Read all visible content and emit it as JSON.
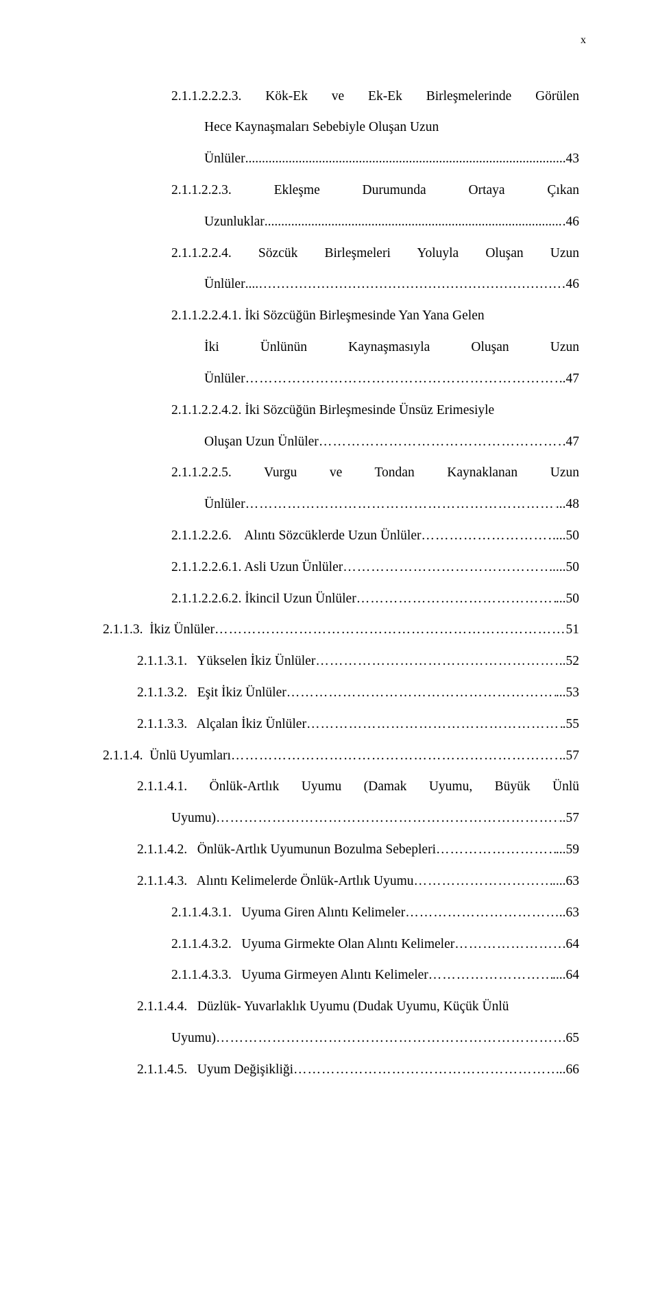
{
  "page_marker": "x",
  "entries": [
    {
      "cls": "lvl-a just",
      "text": "2.1.1.2.2.2.3.  Kök-Ek  ve  Ek-Ek  Birleşmelerinde  Görülen"
    },
    {
      "cls": "cont",
      "label": "Hece Kaynaşmaları Sebebiyle Oluşan Uzun",
      "page": ""
    },
    {
      "cls": "cont",
      "label": "Ünlüler",
      "leader": "dots",
      "page": "43"
    },
    {
      "cls": "lvl-a just",
      "text": "2.1.1.2.2.3.    Ekleşme    Durumunda    Ortaya    Çıkan"
    },
    {
      "cls": "cont",
      "label": "Uzunluklar",
      "leader": "dots",
      "page": ".46"
    },
    {
      "cls": "lvl-a just",
      "text": "2.1.1.2.2.4.   Sözcük   Birleşmeleri   Yoluyla   Oluşan   Uzun"
    },
    {
      "cls": "cont",
      "label": "Ünlüler",
      "leader": "mixed",
      "page": "46"
    },
    {
      "cls": "lvl-b",
      "label": "2.1.1.2.2.4.1. İki Sözcüğün Birleşmesinde Yan Yana Gelen",
      "page": ""
    },
    {
      "cls": "cont just",
      "text": "İki   Ünlünün   Kaynaşmasıyla   Oluşan   Uzun"
    },
    {
      "cls": "cont",
      "label": "Ünlüler",
      "leader": "ell",
      "page": "..47"
    },
    {
      "cls": "lvl-b",
      "label": "2.1.1.2.2.4.2. İki Sözcüğün Birleşmesinde Ünsüz Erimesiyle",
      "page": ""
    },
    {
      "cls": "cont",
      "label": "Oluşan Uzun Ünlüler",
      "leader": "ell",
      "page": "47"
    },
    {
      "cls": "lvl-a just",
      "text": "2.1.1.2.2.5.    Vurgu    ve    Tondan    Kaynaklanan    Uzun"
    },
    {
      "cls": "cont",
      "label": "Ünlüler",
      "leader": "ell",
      "page": "...48"
    },
    {
      "cls": "lvl-a",
      "label": "2.1.1.2.2.6.    Alıntı Sözcüklerde Uzun Ünlüler",
      "leader": "ell",
      "page": "....50"
    },
    {
      "cls": "lvl-b",
      "label": "2.1.1.2.2.6.1. Asli Uzun Ünlüler",
      "leader": "ell",
      "page": ".....50"
    },
    {
      "cls": "lvl-b",
      "label": "2.1.1.2.2.6.2. İkincil Uzun Ünlüler",
      "leader": "ell",
      "page": "...50"
    },
    {
      "cls": "lvl-d",
      "label": "2.1.1.3.  İkiz Ünlüler",
      "leader": "ell",
      "page": "51"
    },
    {
      "cls": "lvl-c",
      "label": "2.1.1.3.1.   Yükselen İkiz Ünlüler",
      "leader": "ell",
      "page": "..52"
    },
    {
      "cls": "lvl-c",
      "label": "2.1.1.3.2.   Eşit İkiz Ünlüler",
      "leader": "ell",
      "page": "...53"
    },
    {
      "cls": "lvl-c",
      "label": "2.1.1.3.3.   Alçalan İkiz Ünlüler",
      "leader": "ell",
      "page": ".55"
    },
    {
      "cls": "lvl-d",
      "label": "2.1.1.4.  Ünlü Uyumları",
      "leader": "ell",
      "page": "..57"
    },
    {
      "cls": "lvl-c just",
      "text": "2.1.1.4.1.   Önlük-Artlık  Uyumu  (Damak  Uyumu,  Büyük  Ünlü"
    },
    {
      "cls": "cont2",
      "label": "Uyumu)",
      "leader": "ell",
      "page": "..57"
    },
    {
      "cls": "lvl-c",
      "label": "2.1.1.4.2.   Önlük-Artlık Uyumunun Bozulma Sebepleri",
      "leader": "ell",
      "page": "...59"
    },
    {
      "cls": "lvl-c",
      "label": "2.1.1.4.3.   Alıntı Kelimelerde Önlük-Artlık Uyumu",
      "leader": "ell",
      "page": "....63"
    },
    {
      "cls": "lvl-a",
      "label": "2.1.1.4.3.1.   Uyuma Giren Alıntı Kelimeler",
      "leader": "ell",
      "page": "..63"
    },
    {
      "cls": "lvl-a",
      "label": "2.1.1.4.3.2.   Uyuma Girmekte Olan Alıntı Kelimeler",
      "leader": "ell",
      "page": "64"
    },
    {
      "cls": "lvl-a",
      "label": "2.1.1.4.3.3.   Uyuma Girmeyen Alıntı Kelimeler",
      "leader": "ell",
      "page": "....64"
    },
    {
      "cls": "lvl-c",
      "label": "2.1.1.4.4.   Düzlük- Yuvarlaklık Uyumu (Dudak Uyumu, Küçük Ünlü",
      "page": ""
    },
    {
      "cls": "cont2",
      "label": "Uyumu)",
      "leader": "ell2",
      "page": ".65"
    },
    {
      "cls": "lvl-c",
      "label": "2.1.1.4.5.   Uyum Değişikliği",
      "leader": "ell",
      "page": "..66"
    }
  ]
}
